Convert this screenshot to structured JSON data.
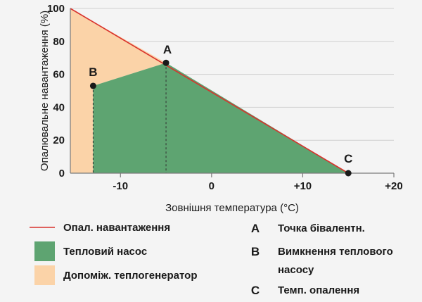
{
  "chart_data": {
    "type": "area",
    "xlabel": "Зовнішня температура (°C)",
    "ylabel": "Опалювальне навантаження (%)",
    "xlim": [
      -15.5,
      20
    ],
    "ylim": [
      0,
      100
    ],
    "x_ticks": [
      -10,
      0,
      10,
      20
    ],
    "x_tick_labels": [
      "-10",
      "0",
      "+10",
      "+20"
    ],
    "y_ticks": [
      0,
      20,
      40,
      60,
      80,
      100
    ],
    "y_tick_labels": [
      "0",
      "20",
      "40",
      "60",
      "80",
      "100"
    ],
    "grid": true,
    "heating_load_line": {
      "x": [
        -15.5,
        15
      ],
      "y": [
        100,
        0
      ]
    },
    "points": [
      {
        "label": "A",
        "x": -5,
        "y": 67
      },
      {
        "label": "B",
        "x": -13,
        "y": 53
      },
      {
        "label": "C",
        "x": 15,
        "y": 0
      }
    ],
    "areas": {
      "heat_pump": [
        {
          "x": -13,
          "y": 0
        },
        {
          "x": -13,
          "y": 53
        },
        {
          "x": -5,
          "y": 67
        },
        {
          "x": 15,
          "y": 0
        }
      ],
      "auxiliary_heater": [
        {
          "x": -15.5,
          "y": 0
        },
        {
          "x": -15.5,
          "y": 100
        },
        {
          "x": -5,
          "y": 67
        },
        {
          "x": -13,
          "y": 53
        },
        {
          "x": -13,
          "y": 0
        }
      ]
    },
    "colors": {
      "heating_load": "#d8322d",
      "heat_pump": "#5ea471",
      "auxiliary_heater": "#fbd3a8",
      "grid": "#cfcfcf",
      "points": "#1a1a1a"
    },
    "legend": {
      "placement": "bottom",
      "left_items": [
        {
          "kind": "line",
          "color": "#d8322d",
          "label": "Опал. навантаження"
        },
        {
          "kind": "box",
          "color": "#5ea471",
          "label": "Тепловий насос"
        },
        {
          "kind": "box",
          "color": "#fbd3a8",
          "label": "Допоміж. теплогенератор"
        }
      ],
      "right_items": [
        {
          "key": "A",
          "lines": [
            "Точка бівалентн."
          ]
        },
        {
          "key": "B",
          "lines": [
            "Вимкнення теплового",
            "насосу"
          ]
        },
        {
          "key": "C",
          "lines": [
            "Темп. опалення"
          ]
        }
      ]
    }
  }
}
